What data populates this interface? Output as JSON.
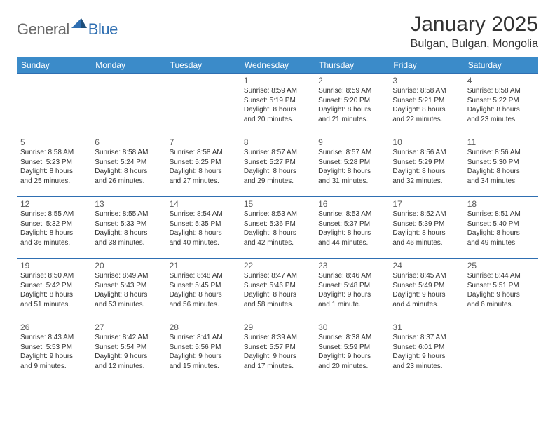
{
  "brand": {
    "part1": "General",
    "part2": "Blue"
  },
  "title": "January 2025",
  "location": "Bulgan, Bulgan, Mongolia",
  "style": {
    "header_bg": "#3b8bc9",
    "header_fg": "#ffffff",
    "border_color": "#2f6fb2",
    "logo_gray": "#6a6a6a",
    "logo_blue": "#2f6fb2",
    "text_color": "#333333",
    "daynum_color": "#5a5a5a",
    "title_fontsize": 30,
    "location_fontsize": 16,
    "dayheader_fontsize": 12,
    "daynum_fontsize": 12,
    "info_fontsize": 10
  },
  "day_names": [
    "Sunday",
    "Monday",
    "Tuesday",
    "Wednesday",
    "Thursday",
    "Friday",
    "Saturday"
  ],
  "weeks": [
    [
      null,
      null,
      null,
      {
        "n": "1",
        "sr": "Sunrise: 8:59 AM",
        "ss": "Sunset: 5:19 PM",
        "dl1": "Daylight: 8 hours",
        "dl2": "and 20 minutes."
      },
      {
        "n": "2",
        "sr": "Sunrise: 8:59 AM",
        "ss": "Sunset: 5:20 PM",
        "dl1": "Daylight: 8 hours",
        "dl2": "and 21 minutes."
      },
      {
        "n": "3",
        "sr": "Sunrise: 8:58 AM",
        "ss": "Sunset: 5:21 PM",
        "dl1": "Daylight: 8 hours",
        "dl2": "and 22 minutes."
      },
      {
        "n": "4",
        "sr": "Sunrise: 8:58 AM",
        "ss": "Sunset: 5:22 PM",
        "dl1": "Daylight: 8 hours",
        "dl2": "and 23 minutes."
      }
    ],
    [
      {
        "n": "5",
        "sr": "Sunrise: 8:58 AM",
        "ss": "Sunset: 5:23 PM",
        "dl1": "Daylight: 8 hours",
        "dl2": "and 25 minutes."
      },
      {
        "n": "6",
        "sr": "Sunrise: 8:58 AM",
        "ss": "Sunset: 5:24 PM",
        "dl1": "Daylight: 8 hours",
        "dl2": "and 26 minutes."
      },
      {
        "n": "7",
        "sr": "Sunrise: 8:58 AM",
        "ss": "Sunset: 5:25 PM",
        "dl1": "Daylight: 8 hours",
        "dl2": "and 27 minutes."
      },
      {
        "n": "8",
        "sr": "Sunrise: 8:57 AM",
        "ss": "Sunset: 5:27 PM",
        "dl1": "Daylight: 8 hours",
        "dl2": "and 29 minutes."
      },
      {
        "n": "9",
        "sr": "Sunrise: 8:57 AM",
        "ss": "Sunset: 5:28 PM",
        "dl1": "Daylight: 8 hours",
        "dl2": "and 31 minutes."
      },
      {
        "n": "10",
        "sr": "Sunrise: 8:56 AM",
        "ss": "Sunset: 5:29 PM",
        "dl1": "Daylight: 8 hours",
        "dl2": "and 32 minutes."
      },
      {
        "n": "11",
        "sr": "Sunrise: 8:56 AM",
        "ss": "Sunset: 5:30 PM",
        "dl1": "Daylight: 8 hours",
        "dl2": "and 34 minutes."
      }
    ],
    [
      {
        "n": "12",
        "sr": "Sunrise: 8:55 AM",
        "ss": "Sunset: 5:32 PM",
        "dl1": "Daylight: 8 hours",
        "dl2": "and 36 minutes."
      },
      {
        "n": "13",
        "sr": "Sunrise: 8:55 AM",
        "ss": "Sunset: 5:33 PM",
        "dl1": "Daylight: 8 hours",
        "dl2": "and 38 minutes."
      },
      {
        "n": "14",
        "sr": "Sunrise: 8:54 AM",
        "ss": "Sunset: 5:35 PM",
        "dl1": "Daylight: 8 hours",
        "dl2": "and 40 minutes."
      },
      {
        "n": "15",
        "sr": "Sunrise: 8:53 AM",
        "ss": "Sunset: 5:36 PM",
        "dl1": "Daylight: 8 hours",
        "dl2": "and 42 minutes."
      },
      {
        "n": "16",
        "sr": "Sunrise: 8:53 AM",
        "ss": "Sunset: 5:37 PM",
        "dl1": "Daylight: 8 hours",
        "dl2": "and 44 minutes."
      },
      {
        "n": "17",
        "sr": "Sunrise: 8:52 AM",
        "ss": "Sunset: 5:39 PM",
        "dl1": "Daylight: 8 hours",
        "dl2": "and 46 minutes."
      },
      {
        "n": "18",
        "sr": "Sunrise: 8:51 AM",
        "ss": "Sunset: 5:40 PM",
        "dl1": "Daylight: 8 hours",
        "dl2": "and 49 minutes."
      }
    ],
    [
      {
        "n": "19",
        "sr": "Sunrise: 8:50 AM",
        "ss": "Sunset: 5:42 PM",
        "dl1": "Daylight: 8 hours",
        "dl2": "and 51 minutes."
      },
      {
        "n": "20",
        "sr": "Sunrise: 8:49 AM",
        "ss": "Sunset: 5:43 PM",
        "dl1": "Daylight: 8 hours",
        "dl2": "and 53 minutes."
      },
      {
        "n": "21",
        "sr": "Sunrise: 8:48 AM",
        "ss": "Sunset: 5:45 PM",
        "dl1": "Daylight: 8 hours",
        "dl2": "and 56 minutes."
      },
      {
        "n": "22",
        "sr": "Sunrise: 8:47 AM",
        "ss": "Sunset: 5:46 PM",
        "dl1": "Daylight: 8 hours",
        "dl2": "and 58 minutes."
      },
      {
        "n": "23",
        "sr": "Sunrise: 8:46 AM",
        "ss": "Sunset: 5:48 PM",
        "dl1": "Daylight: 9 hours",
        "dl2": "and 1 minute."
      },
      {
        "n": "24",
        "sr": "Sunrise: 8:45 AM",
        "ss": "Sunset: 5:49 PM",
        "dl1": "Daylight: 9 hours",
        "dl2": "and 4 minutes."
      },
      {
        "n": "25",
        "sr": "Sunrise: 8:44 AM",
        "ss": "Sunset: 5:51 PM",
        "dl1": "Daylight: 9 hours",
        "dl2": "and 6 minutes."
      }
    ],
    [
      {
        "n": "26",
        "sr": "Sunrise: 8:43 AM",
        "ss": "Sunset: 5:53 PM",
        "dl1": "Daylight: 9 hours",
        "dl2": "and 9 minutes."
      },
      {
        "n": "27",
        "sr": "Sunrise: 8:42 AM",
        "ss": "Sunset: 5:54 PM",
        "dl1": "Daylight: 9 hours",
        "dl2": "and 12 minutes."
      },
      {
        "n": "28",
        "sr": "Sunrise: 8:41 AM",
        "ss": "Sunset: 5:56 PM",
        "dl1": "Daylight: 9 hours",
        "dl2": "and 15 minutes."
      },
      {
        "n": "29",
        "sr": "Sunrise: 8:39 AM",
        "ss": "Sunset: 5:57 PM",
        "dl1": "Daylight: 9 hours",
        "dl2": "and 17 minutes."
      },
      {
        "n": "30",
        "sr": "Sunrise: 8:38 AM",
        "ss": "Sunset: 5:59 PM",
        "dl1": "Daylight: 9 hours",
        "dl2": "and 20 minutes."
      },
      {
        "n": "31",
        "sr": "Sunrise: 8:37 AM",
        "ss": "Sunset: 6:01 PM",
        "dl1": "Daylight: 9 hours",
        "dl2": "and 23 minutes."
      },
      null
    ]
  ]
}
